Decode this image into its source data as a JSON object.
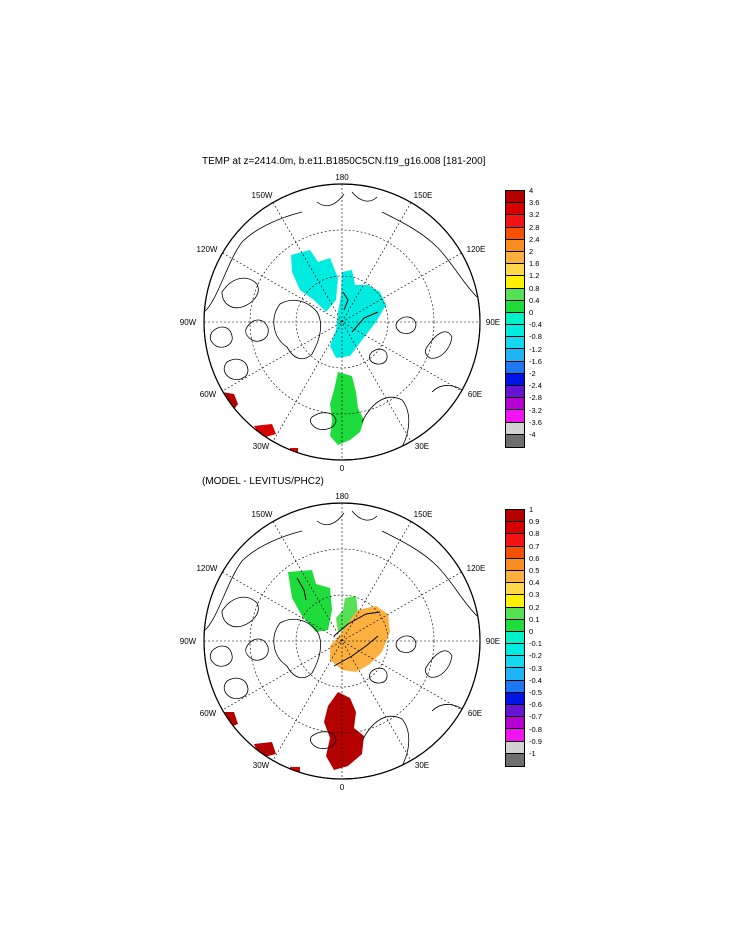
{
  "panels": [
    {
      "title": "TEMP at z=2414.0m, b.e11.B1850C5CN.f19_g16.008 [181-200]",
      "lon_labels": {
        "top": "180",
        "w150": "150W",
        "e150": "150E",
        "w120": "120W",
        "e120": "120E",
        "w90": "90W",
        "e90": "90E",
        "w60": "60W",
        "e60": "60E",
        "w30": "30W",
        "e30": "30E",
        "bottom": "0"
      },
      "colorbar": {
        "labels": [
          "4",
          "3.6",
          "3.2",
          "2.8",
          "2.4",
          "2",
          "1.6",
          "1.2",
          "0.8",
          "0.4",
          "0",
          "-0.4",
          "-0.8",
          "-1.2",
          "-1.6",
          "-2",
          "-2.4",
          "-2.8",
          "-3.2",
          "-3.6",
          "-4"
        ],
        "colors": [
          "#b50000",
          "#d70000",
          "#f21414",
          "#f55000",
          "#f88c20",
          "#fbb040",
          "#ffd84a",
          "#fff000",
          "#55e055",
          "#1edc3c",
          "#00f0c8",
          "#00ece0",
          "#14d7f0",
          "#1eb4f5",
          "#1e78f5",
          "#0014e6",
          "#6414d2",
          "#b400d2",
          "#f014f0",
          "#d2d2d2",
          "#6e6e6e"
        ]
      }
    },
    {
      "title": "(MODEL - LEVITUS/PHC2)",
      "lon_labels": {
        "top": "180",
        "w150": "150W",
        "e150": "150E",
        "w120": "120W",
        "e120": "120E",
        "w90": "90W",
        "e90": "90E",
        "w60": "60W",
        "e60": "60E",
        "w30": "30W",
        "e30": "30E",
        "bottom": "0"
      },
      "colorbar": {
        "labels": [
          "1",
          "0.9",
          "0.8",
          "0.7",
          "0.6",
          "0.5",
          "0.4",
          "0.3",
          "0.2",
          "0.1",
          "0",
          "-0.1",
          "-0.2",
          "-0.3",
          "-0.4",
          "-0.5",
          "-0.6",
          "-0.7",
          "-0.8",
          "-0.9",
          "-1"
        ],
        "colors": [
          "#b50000",
          "#d70000",
          "#f21414",
          "#f55000",
          "#f88c20",
          "#fbb040",
          "#ffd84a",
          "#fff000",
          "#55e055",
          "#1edc3c",
          "#00f0c8",
          "#00ece0",
          "#14d7f0",
          "#1eb4f5",
          "#1e78f5",
          "#0014e6",
          "#6414d2",
          "#b400d2",
          "#f014f0",
          "#d2d2d2",
          "#6e6e6e"
        ]
      }
    }
  ]
}
